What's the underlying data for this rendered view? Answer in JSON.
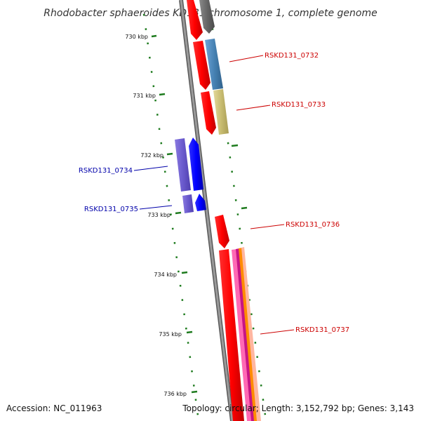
{
  "title": "Rhodobacter sphaeroides KD131 chromosome 1, complete genome",
  "ticks": [
    "730 kbp",
    "731 kbp",
    "732 kbp",
    "733 kbp",
    "734 kbp",
    "735 kbp",
    "736 kbp"
  ],
  "genes": [
    {
      "name": "RSKD131_0732",
      "color": "#cc0000"
    },
    {
      "name": "RSKD131_0733",
      "color": "#cc0000"
    },
    {
      "name": "RSKD131_0734",
      "color": "#0000aa"
    },
    {
      "name": "RSKD131_0735",
      "color": "#0000aa"
    },
    {
      "name": "RSKD131_0736",
      "color": "#cc0000"
    },
    {
      "name": "RSKD131_0737",
      "color": "#cc0000"
    }
  ],
  "footer": {
    "accession": "Accession: NC_011963",
    "summary": "Topology: circular; Length: 3,152,792 bp; Genes: 3,143"
  },
  "colors": {
    "forward_gene": "#ff0000",
    "reverse_gene": "#0000ff",
    "reverse_feature": "#6a5acd",
    "backbone": "#888888",
    "tick": "#1e7b1e"
  }
}
